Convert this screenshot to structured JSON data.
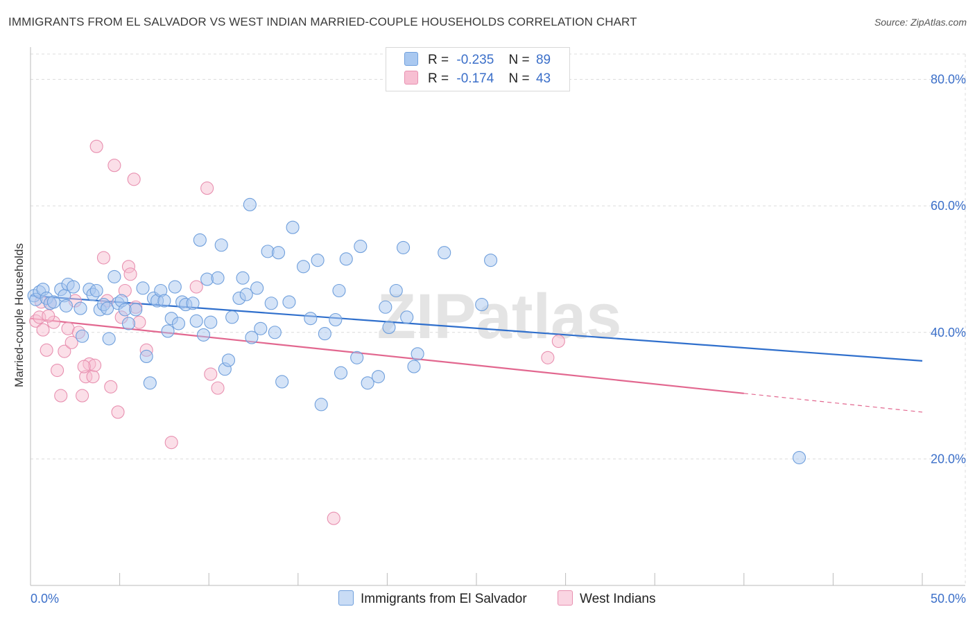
{
  "title": "IMMIGRANTS FROM EL SALVADOR VS WEST INDIAN MARRIED-COUPLE HOUSEHOLDS CORRELATION CHART",
  "source": "Source: ZipAtlas.com",
  "watermark": "ZIPatlas",
  "legend": {
    "rows": [
      {
        "r_label": "R =",
        "r_value": "-0.235",
        "n_label": "N =",
        "n_value": "89",
        "color": "#a9c8f0",
        "border": "#6f9fdc"
      },
      {
        "r_label": "R =",
        "r_value": "-0.174",
        "n_label": "N =",
        "n_value": "43",
        "color": "#f7bfd2",
        "border": "#e890b0"
      }
    ]
  },
  "bottom_legend": [
    {
      "label": "Immigrants from El Salvador",
      "color": "#a9c8f0",
      "border": "#6f9fdc"
    },
    {
      "label": "West Indians",
      "color": "#f7bfd2",
      "border": "#e890b0"
    }
  ],
  "chart_data": {
    "type": "scatter",
    "title": "IMMIGRANTS FROM EL SALVADOR VS WEST INDIAN MARRIED-COUPLE HOUSEHOLDS CORRELATION CHART",
    "xlabel": "",
    "ylabel": "Married-couple Households",
    "xlim": [
      0,
      50
    ],
    "ylim": [
      0,
      84
    ],
    "x_tick_labels": [
      "0.0%",
      "50.0%"
    ],
    "y_ticks": [
      20,
      40,
      60,
      80
    ],
    "y_tick_labels": [
      "20.0%",
      "40.0%",
      "60.0%",
      "80.0%"
    ],
    "grid": true,
    "series": [
      {
        "name": "Immigrants from El Salvador",
        "color": "#a9c8f0",
        "stroke": "#6f9fdc",
        "line_color": "#2f6fcc",
        "trend": {
          "x0": 0,
          "y0": 45.8,
          "x1": 50,
          "y1": 35.5,
          "solid_until": 50
        },
        "points": [
          [
            0.2,
            45.8
          ],
          [
            0.3,
            45.2
          ],
          [
            0.5,
            46.4
          ],
          [
            0.7,
            46.8
          ],
          [
            0.9,
            45.4
          ],
          [
            1.1,
            44.6
          ],
          [
            1.3,
            44.8
          ],
          [
            1.7,
            46.8
          ],
          [
            1.9,
            45.8
          ],
          [
            2.1,
            47.6
          ],
          [
            2.4,
            47.2
          ],
          [
            2.8,
            43.8
          ],
          [
            2.9,
            39.4
          ],
          [
            3.3,
            46.8
          ],
          [
            3.5,
            46.0
          ],
          [
            3.7,
            46.6
          ],
          [
            3.9,
            43.6
          ],
          [
            4.1,
            44.4
          ],
          [
            4.3,
            43.8
          ],
          [
            4.4,
            39.0
          ],
          [
            4.7,
            48.8
          ],
          [
            4.9,
            44.6
          ],
          [
            5.1,
            45.0
          ],
          [
            5.3,
            43.6
          ],
          [
            5.5,
            41.4
          ],
          [
            5.9,
            43.6
          ],
          [
            6.3,
            47.0
          ],
          [
            6.5,
            36.2
          ],
          [
            6.7,
            32.0
          ],
          [
            6.9,
            45.4
          ],
          [
            7.1,
            45.0
          ],
          [
            7.3,
            46.6
          ],
          [
            7.5,
            45.0
          ],
          [
            7.7,
            40.2
          ],
          [
            7.9,
            42.2
          ],
          [
            8.1,
            47.2
          ],
          [
            8.3,
            41.4
          ],
          [
            8.5,
            44.8
          ],
          [
            8.7,
            44.4
          ],
          [
            9.1,
            44.6
          ],
          [
            9.3,
            41.8
          ],
          [
            9.5,
            54.6
          ],
          [
            9.7,
            39.6
          ],
          [
            9.9,
            48.4
          ],
          [
            10.1,
            41.6
          ],
          [
            10.5,
            48.6
          ],
          [
            10.7,
            53.8
          ],
          [
            10.9,
            34.2
          ],
          [
            11.1,
            35.6
          ],
          [
            11.3,
            42.4
          ],
          [
            11.7,
            45.4
          ],
          [
            11.9,
            48.6
          ],
          [
            12.1,
            46.0
          ],
          [
            12.3,
            60.2
          ],
          [
            12.4,
            39.2
          ],
          [
            12.7,
            47.0
          ],
          [
            12.9,
            40.6
          ],
          [
            13.3,
            52.8
          ],
          [
            13.5,
            44.6
          ],
          [
            13.7,
            40.0
          ],
          [
            13.9,
            52.6
          ],
          [
            14.1,
            32.2
          ],
          [
            14.5,
            44.8
          ],
          [
            14.7,
            56.6
          ],
          [
            15.3,
            50.4
          ],
          [
            15.7,
            42.2
          ],
          [
            16.1,
            51.4
          ],
          [
            16.3,
            28.6
          ],
          [
            16.5,
            39.8
          ],
          [
            17.1,
            42.0
          ],
          [
            17.3,
            46.6
          ],
          [
            17.4,
            33.6
          ],
          [
            17.7,
            51.6
          ],
          [
            18.3,
            36.0
          ],
          [
            18.5,
            53.6
          ],
          [
            18.9,
            32.0
          ],
          [
            19.5,
            33.0
          ],
          [
            19.9,
            44.0
          ],
          [
            20.1,
            40.8
          ],
          [
            20.5,
            46.6
          ],
          [
            20.9,
            53.4
          ],
          [
            21.1,
            42.4
          ],
          [
            21.5,
            34.6
          ],
          [
            21.7,
            36.6
          ],
          [
            23.2,
            52.6
          ],
          [
            25.8,
            51.4
          ],
          [
            25.3,
            44.4
          ],
          [
            43.1,
            20.2
          ],
          [
            2.0,
            44.2
          ]
        ]
      },
      {
        "name": "West Indians",
        "color": "#f7bfd2",
        "stroke": "#e890b0",
        "line_color": "#e2678f",
        "trend": {
          "x0": 0,
          "y0": 42.2,
          "x1": 50,
          "y1": 27.4,
          "solid_until": 40
        },
        "points": [
          [
            0.3,
            41.8
          ],
          [
            0.5,
            42.4
          ],
          [
            0.7,
            40.4
          ],
          [
            0.9,
            37.2
          ],
          [
            1.1,
            44.6
          ],
          [
            1.3,
            41.6
          ],
          [
            1.5,
            34.0
          ],
          [
            1.7,
            30.0
          ],
          [
            1.9,
            37.0
          ],
          [
            2.1,
            40.6
          ],
          [
            2.3,
            38.4
          ],
          [
            2.5,
            45.0
          ],
          [
            2.7,
            40.0
          ],
          [
            2.9,
            30.0
          ],
          [
            3.1,
            33.0
          ],
          [
            3.3,
            35.0
          ],
          [
            3.5,
            33.0
          ],
          [
            3.6,
            34.8
          ],
          [
            3.7,
            69.4
          ],
          [
            4.1,
            51.8
          ],
          [
            4.3,
            45.0
          ],
          [
            4.5,
            31.4
          ],
          [
            4.7,
            66.4
          ],
          [
            4.9,
            27.4
          ],
          [
            5.1,
            42.4
          ],
          [
            5.3,
            46.6
          ],
          [
            5.5,
            50.4
          ],
          [
            5.6,
            49.2
          ],
          [
            5.8,
            64.2
          ],
          [
            5.9,
            44.0
          ],
          [
            6.1,
            41.6
          ],
          [
            6.5,
            37.2
          ],
          [
            7.9,
            22.6
          ],
          [
            9.3,
            47.2
          ],
          [
            9.9,
            62.8
          ],
          [
            10.1,
            33.4
          ],
          [
            10.5,
            31.2
          ],
          [
            17.0,
            10.6
          ],
          [
            29.0,
            36.0
          ],
          [
            29.6,
            38.6
          ],
          [
            0.6,
            44.8
          ],
          [
            1.0,
            42.6
          ],
          [
            3.0,
            34.6
          ]
        ]
      }
    ]
  }
}
